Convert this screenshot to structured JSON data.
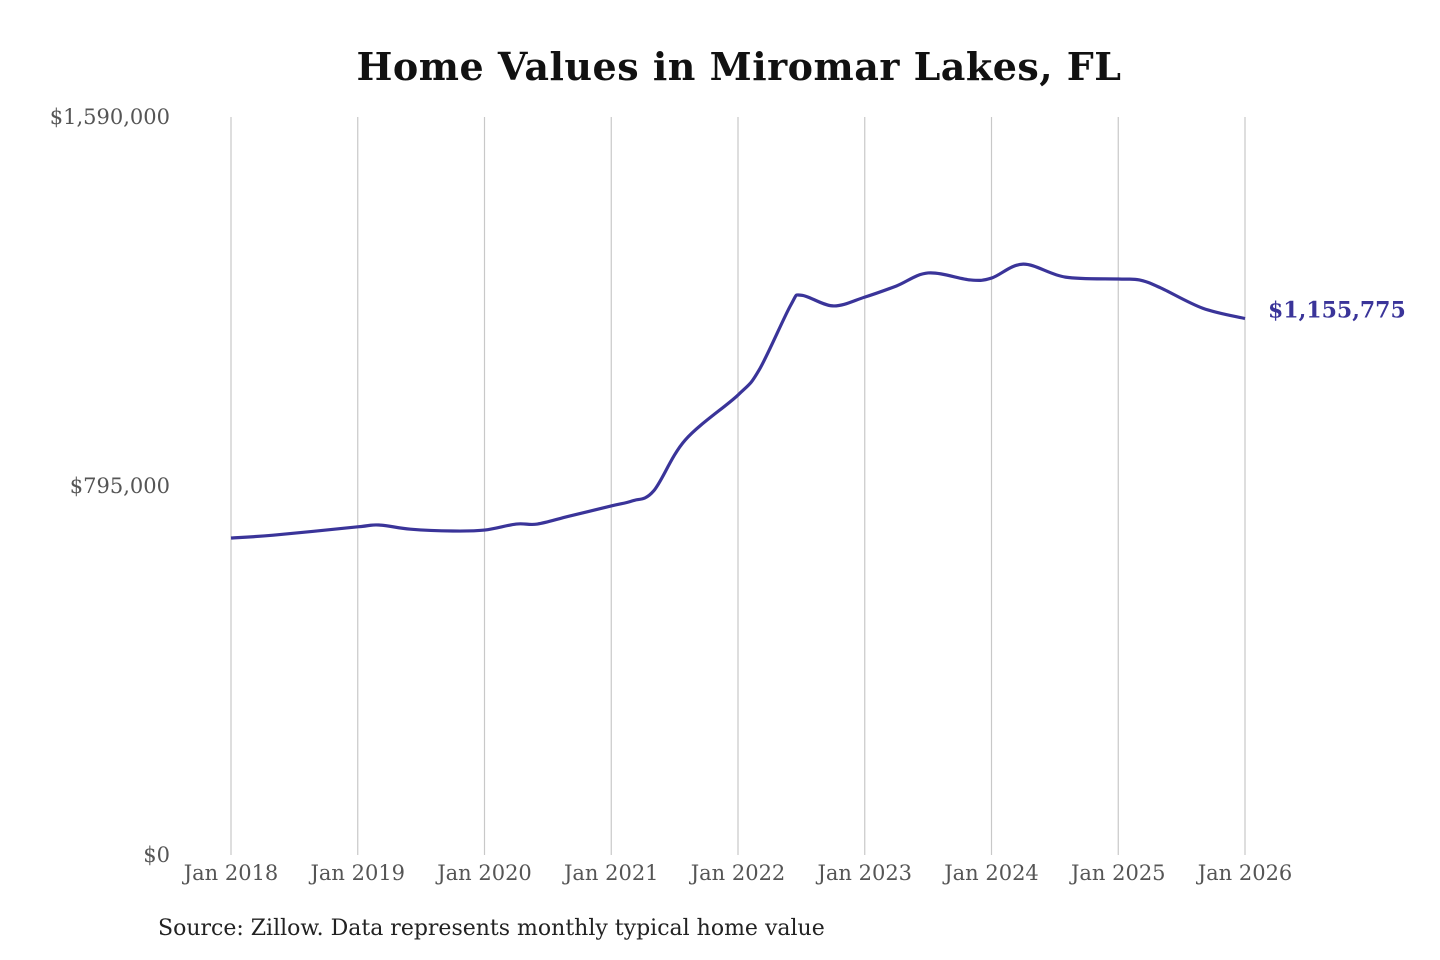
{
  "chart_data": {
    "type": "line",
    "title": "Home Values in Miromar Lakes, FL",
    "source": "Source: Zillow. Data represents monthly typical home value",
    "ylim": [
      0,
      1590000
    ],
    "yticks": [
      "$0",
      "$795,000",
      "$1,590,000"
    ],
    "ytick_values": [
      0,
      795000,
      1590000
    ],
    "xticks": [
      "Jan 2018",
      "Jan 2019",
      "Jan 2020",
      "Jan 2021",
      "Jan 2022",
      "Jan 2023",
      "Jan 2024",
      "Jan 2025",
      "Jan 2026"
    ],
    "xtick_values": [
      "2018-01",
      "2019-01",
      "2020-01",
      "2021-01",
      "2022-01",
      "2023-01",
      "2024-01",
      "2025-01",
      "2026-01"
    ],
    "grid": "vertical",
    "line_color": "#3a3499",
    "end_label": "$1,155,775",
    "series": [
      {
        "x": [
          "2018-01",
          "2018-05",
          "2019-01",
          "2019-03",
          "2019-06",
          "2019-10",
          "2020-01",
          "2020-04",
          "2020-06",
          "2020-09",
          "2021-01",
          "2021-03",
          "2021-05",
          "2021-08",
          "2022-01",
          "2022-03",
          "2022-06",
          "2022-07",
          "2022-10",
          "2023-01",
          "2023-04",
          "2023-07",
          "2023-11",
          "2024-01",
          "2024-04",
          "2024-08",
          "2025-01",
          "2025-03",
          "2025-05",
          "2025-09",
          "2026-01"
        ],
        "y": [
          683000,
          689000,
          707000,
          711000,
          702000,
          698000,
          700000,
          713000,
          713000,
          730000,
          752000,
          763000,
          784000,
          894000,
          991000,
          1045000,
          1185000,
          1206000,
          1183000,
          1202000,
          1226000,
          1254000,
          1239000,
          1243000,
          1273000,
          1245000,
          1241000,
          1239000,
          1222000,
          1178000,
          1155775
        ]
      }
    ]
  }
}
